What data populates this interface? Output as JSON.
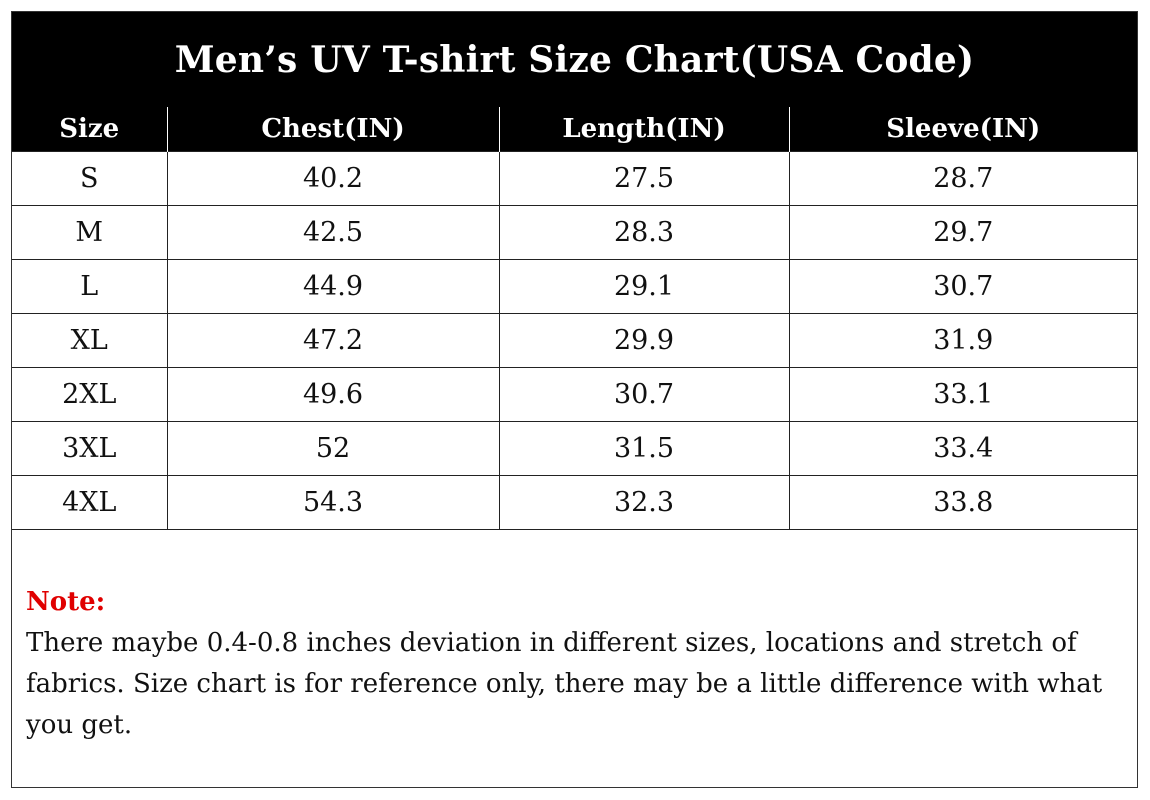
{
  "title": "Men’s UV T-shirt Size Chart(USA Code)",
  "table": {
    "headers": [
      "Size",
      "Chest(IN)",
      "Length(IN)",
      "Sleeve(IN)"
    ],
    "rows": [
      [
        "S",
        "40.2",
        "27.5",
        "28.7"
      ],
      [
        "M",
        "42.5",
        "28.3",
        "29.7"
      ],
      [
        "L",
        "44.9",
        "29.1",
        "30.7"
      ],
      [
        "XL",
        "47.2",
        "29.9",
        "31.9"
      ],
      [
        "2XL",
        "49.6",
        "30.7",
        "33.1"
      ],
      [
        "3XL",
        "52",
        "31.5",
        "33.4"
      ],
      [
        "4XL",
        "54.3",
        "32.3",
        "33.8"
      ]
    ]
  },
  "note": {
    "label": "Note:",
    "text": "There maybe 0.4-0.8 inches deviation in different sizes, locations and stretch of fabrics. Size chart is for reference only, there may be a little difference with what you get."
  },
  "colors": {
    "header_bg": "#000000",
    "header_text": "#ffffff",
    "note_label": "#e00000"
  }
}
